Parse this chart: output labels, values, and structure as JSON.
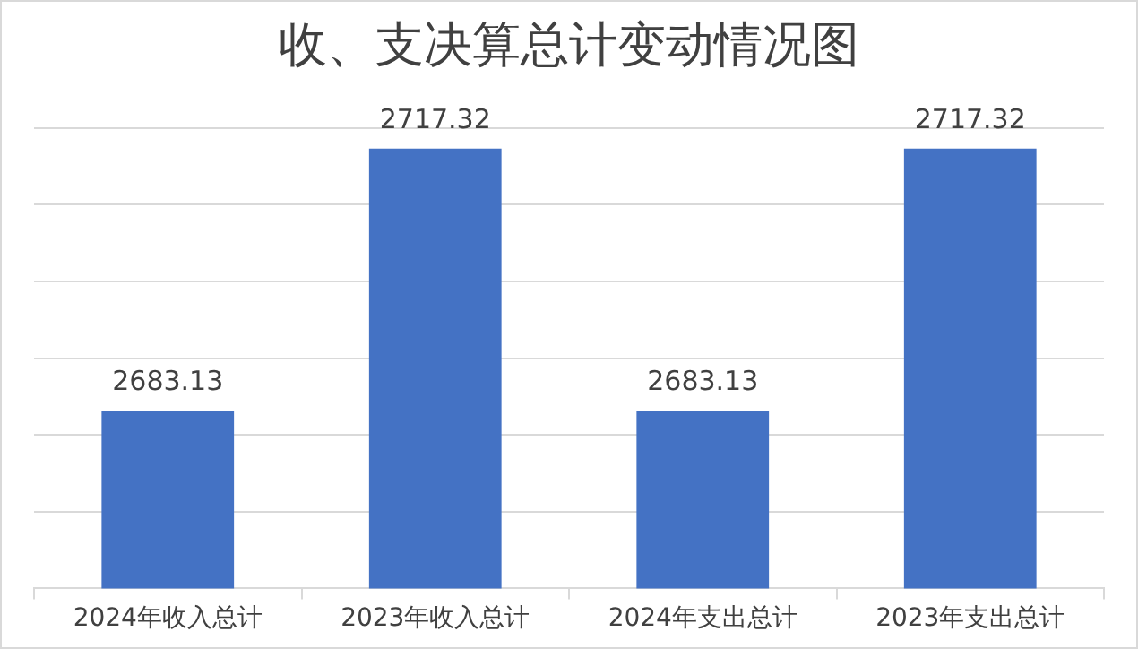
{
  "chart_data": {
    "type": "bar",
    "title": "收、支决算总计变动情况图",
    "categories": [
      "2024年收入总计",
      "2023年收入总计",
      "2024年支出总计",
      "2023年支出总计"
    ],
    "values": [
      2683.13,
      2717.32,
      2683.13,
      2717.32
    ],
    "color": "#4472c4",
    "ylim": [
      2660,
      2720
    ],
    "yticks": [
      {
        "value": 2660,
        "label": null
      },
      {
        "value": 2670,
        "label": null
      },
      {
        "value": 2680,
        "label": null
      },
      {
        "value": 2690,
        "label": null
      },
      {
        "value": 2700,
        "label": null
      },
      {
        "value": 2710,
        "label": null
      },
      {
        "value": 2720,
        "label": null
      }
    ],
    "grid": "y",
    "tick_labels": "x",
    "data_labels": true
  }
}
